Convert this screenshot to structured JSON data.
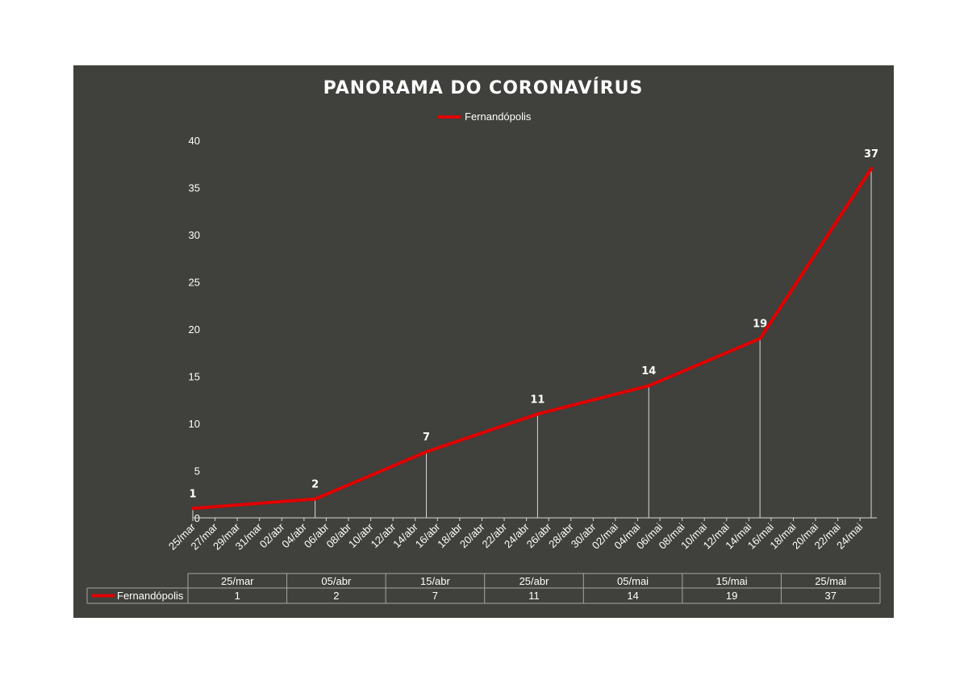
{
  "chart_data": {
    "type": "line",
    "title": "PANORAMA DO CORONAVÍRUS",
    "xlabel": "",
    "ylabel": "",
    "ylim": [
      0,
      40
    ],
    "yticks": [
      0,
      5,
      10,
      15,
      20,
      25,
      30,
      35,
      40
    ],
    "grid": false,
    "legend_position": "top-center",
    "x_tick_labels": [
      "25/mar",
      "27/mar",
      "29/mar",
      "31/mar",
      "02/abr",
      "04/abr",
      "06/abr",
      "08/abr",
      "10/abr",
      "12/abr",
      "14/abr",
      "16/abr",
      "18/abr",
      "20/abr",
      "22/abr",
      "24/abr",
      "26/abr",
      "28/abr",
      "30/abr",
      "02/mai",
      "04/mai",
      "06/mai",
      "08/mai",
      "10/mai",
      "12/mai",
      "14/mai",
      "16/mai",
      "18/mai",
      "20/mai",
      "22/mai",
      "24/mai"
    ],
    "x_range": [
      "25/mar",
      "25/mai"
    ],
    "series": [
      {
        "name": "Fernandópolis",
        "color": "#e00000",
        "x": [
          "25/mar",
          "05/abr",
          "15/abr",
          "25/abr",
          "05/mai",
          "15/mai",
          "25/mai"
        ],
        "values": [
          1,
          2,
          7,
          11,
          14,
          19,
          37
        ]
      }
    ],
    "data_table": {
      "headers": [
        "25/mar",
        "05/abr",
        "15/abr",
        "25/abr",
        "05/mai",
        "15/mai",
        "25/mai"
      ],
      "row_label": "Fernandópolis",
      "values": [
        "1",
        "2",
        "7",
        "11",
        "14",
        "19",
        "37"
      ]
    }
  }
}
